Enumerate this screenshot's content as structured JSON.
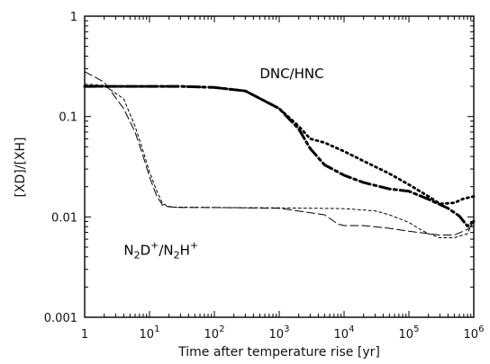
{
  "chart_data": {
    "type": "line",
    "xlabel": "Time after temperature rise [yr]",
    "ylabel": "[XD]/[XH]",
    "xscale": "log",
    "yscale": "log",
    "xlim": [
      1,
      1000000
    ],
    "ylim": [
      0.001,
      1
    ],
    "grid": false,
    "legend": "none",
    "x_ticks": [
      {
        "value": 1,
        "base": "1",
        "exp": ""
      },
      {
        "value": 10,
        "base": "10",
        "exp": "1"
      },
      {
        "value": 100,
        "base": "10",
        "exp": "2"
      },
      {
        "value": 1000,
        "base": "10",
        "exp": "3"
      },
      {
        "value": 10000,
        "base": "10",
        "exp": "4"
      },
      {
        "value": 100000,
        "base": "10",
        "exp": "5"
      },
      {
        "value": 1000000,
        "base": "10",
        "exp": "6"
      }
    ],
    "y_ticks": [
      {
        "value": 0.001,
        "label": "0.001"
      },
      {
        "value": 0.01,
        "label": "0.01"
      },
      {
        "value": 0.1,
        "label": "0.1"
      },
      {
        "value": 1,
        "label": "1"
      }
    ],
    "annotations": [
      {
        "id": "dnc",
        "text": "DNC/HNC",
        "x": 500,
        "y": 0.24
      },
      {
        "id": "n2d",
        "base1": "N",
        "sub1": "2",
        "mid": "D",
        "sup1": "+",
        "slash": "/N",
        "sub2": "2",
        "tail": "H",
        "sup2": "+",
        "x": 4,
        "y": 0.0042
      }
    ],
    "series": [
      {
        "style": "dashdot-bold",
        "x": [
          1,
          2,
          5,
          10,
          30,
          100,
          300,
          1000,
          2000,
          3000,
          5000,
          10000,
          20000,
          50000,
          100000,
          200000,
          400000,
          600000,
          800000,
          1000000
        ],
        "y": [
          0.2,
          0.2,
          0.2,
          0.2,
          0.2,
          0.195,
          0.18,
          0.12,
          0.075,
          0.048,
          0.033,
          0.026,
          0.022,
          0.019,
          0.018,
          0.015,
          0.0122,
          0.0102,
          0.0081,
          0.009
        ]
      },
      {
        "style": "dotted-bold",
        "x": [
          1,
          2,
          5,
          10,
          30,
          100,
          300,
          1000,
          2000,
          3000,
          5000,
          10000,
          20000,
          50000,
          100000,
          200000,
          300000,
          500000,
          700000,
          1000000
        ],
        "y": [
          0.2,
          0.2,
          0.2,
          0.2,
          0.2,
          0.195,
          0.18,
          0.12,
          0.08,
          0.06,
          0.055,
          0.045,
          0.036,
          0.027,
          0.021,
          0.016,
          0.0135,
          0.0138,
          0.0152,
          0.016
        ]
      },
      {
        "style": "longdash-thin",
        "x": [
          1,
          2,
          4,
          6,
          8,
          10,
          13,
          16,
          20,
          25,
          30,
          100,
          1000,
          5000,
          8000,
          10000,
          20000,
          50000,
          100000,
          300000,
          500000,
          800000,
          1000000
        ],
        "y": [
          0.28,
          0.22,
          0.12,
          0.07,
          0.04,
          0.025,
          0.016,
          0.013,
          0.0126,
          0.0125,
          0.0124,
          0.0124,
          0.0122,
          0.0105,
          0.0085,
          0.0082,
          0.0082,
          0.0077,
          0.0072,
          0.0066,
          0.0066,
          0.0075,
          0.0085
        ]
      },
      {
        "style": "shortdash-thin",
        "x": [
          1,
          2,
          4,
          6,
          8,
          10,
          13,
          16,
          20,
          25,
          30,
          100,
          1000,
          10000,
          30000,
          50000,
          100000,
          150000,
          200000,
          300000,
          500000,
          800000,
          1000000
        ],
        "y": [
          0.21,
          0.205,
          0.15,
          0.08,
          0.045,
          0.028,
          0.018,
          0.0135,
          0.0127,
          0.0125,
          0.0125,
          0.0124,
          0.0123,
          0.0121,
          0.0115,
          0.0105,
          0.0088,
          0.0075,
          0.0068,
          0.0062,
          0.0062,
          0.0068,
          0.0095
        ]
      }
    ]
  }
}
